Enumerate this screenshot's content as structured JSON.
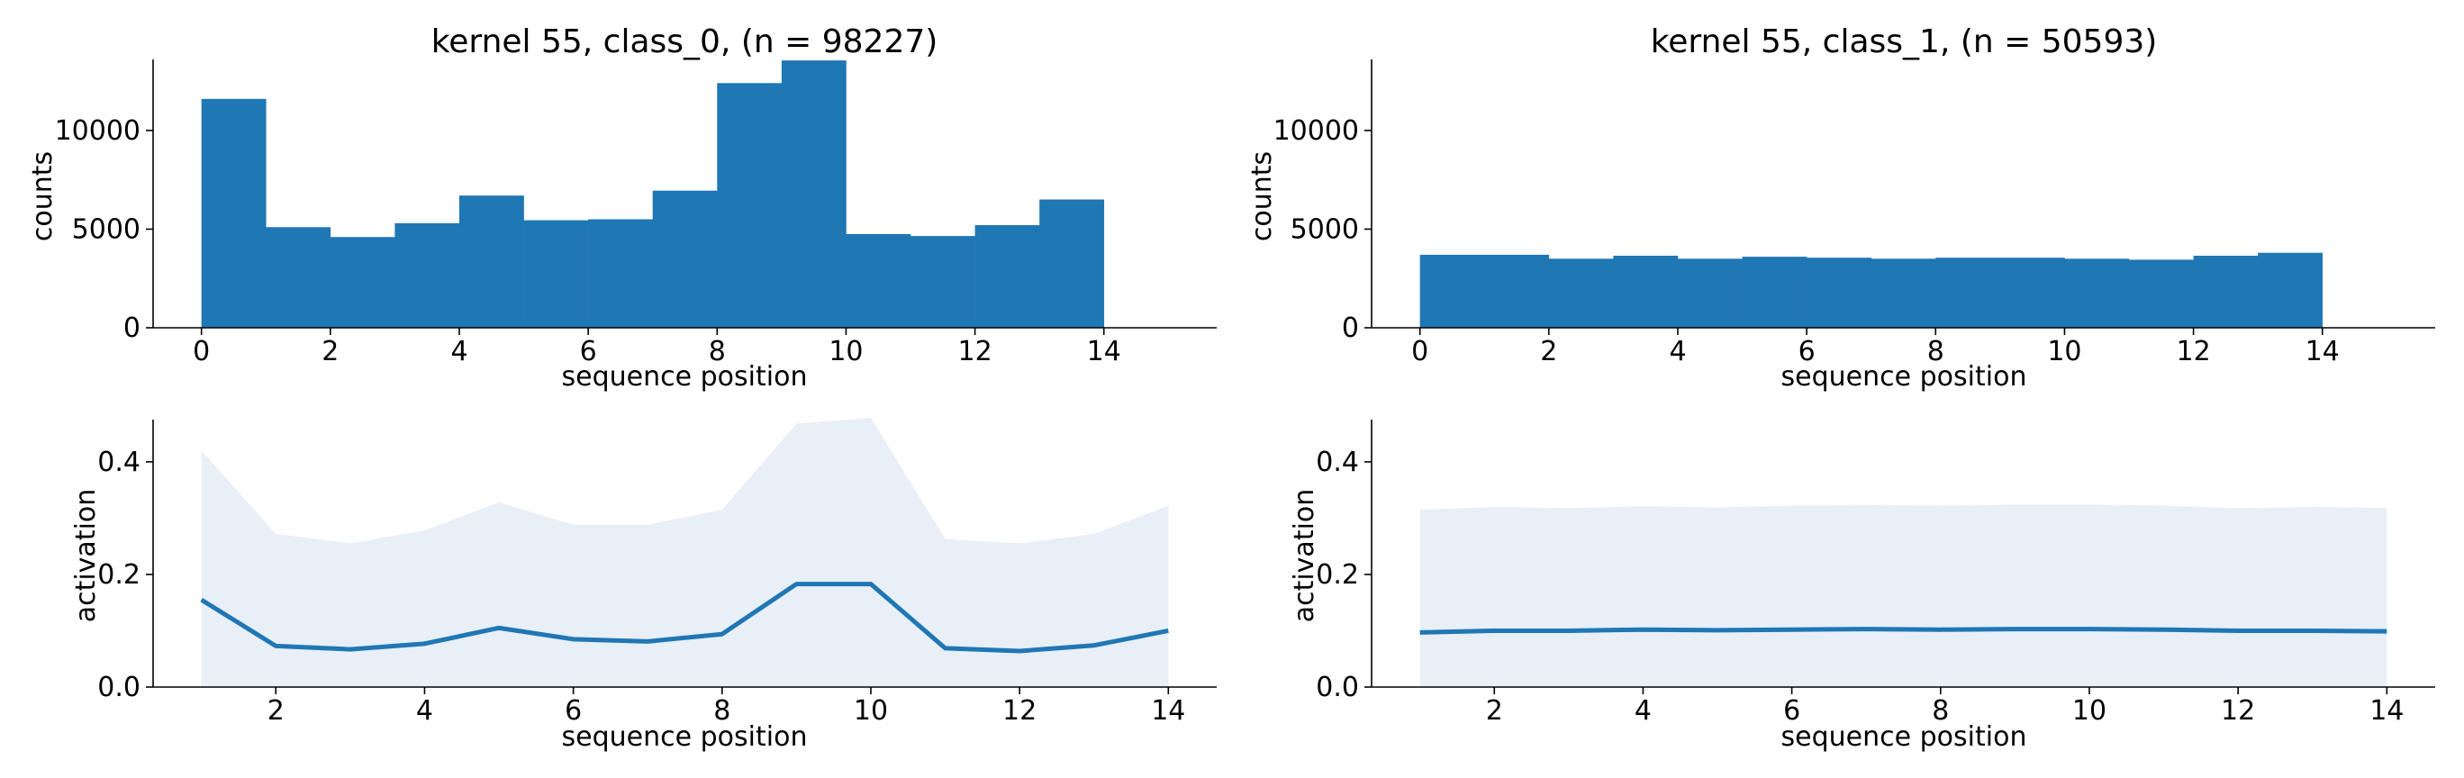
{
  "chart_data": [
    {
      "id": "hist0",
      "type": "bar",
      "title": "kernel 55, class_0, (n = 98227)",
      "xlabel": "sequence position",
      "ylabel": "counts",
      "xlim": [
        -0.75,
        15.75
      ],
      "ylim": [
        0,
        13600
      ],
      "xticks": [
        0,
        2,
        4,
        6,
        8,
        10,
        12,
        14
      ],
      "yticks": [
        0,
        5000,
        10000
      ],
      "bin_edges": [
        0,
        1,
        2,
        3,
        4,
        5,
        6,
        7,
        8,
        9,
        10,
        11,
        12,
        13,
        14
      ],
      "values": [
        11600,
        5100,
        4600,
        5300,
        6700,
        5450,
        5500,
        6950,
        12400,
        13550,
        4750,
        4650,
        5200,
        6500
      ],
      "color": "#1f77b4"
    },
    {
      "id": "hist1",
      "type": "bar",
      "title": "kernel 55, class_1, (n = 50593)",
      "xlabel": "sequence position",
      "ylabel": "counts",
      "xlim": [
        -0.75,
        15.75
      ],
      "ylim": [
        0,
        13600
      ],
      "xticks": [
        0,
        2,
        4,
        6,
        8,
        10,
        12,
        14
      ],
      "yticks": [
        0,
        5000,
        10000
      ],
      "bin_edges": [
        0,
        1,
        2,
        3,
        4,
        5,
        6,
        7,
        8,
        9,
        10,
        11,
        12,
        13,
        14
      ],
      "values": [
        3700,
        3700,
        3500,
        3650,
        3500,
        3600,
        3550,
        3500,
        3550,
        3550,
        3500,
        3450,
        3650,
        3800
      ],
      "color": "#1f77b4"
    },
    {
      "id": "line0",
      "type": "area",
      "title": "",
      "xlabel": "sequence position",
      "ylabel": "activation",
      "xlim": [
        0.35,
        14.65
      ],
      "ylim": [
        0,
        0.475
      ],
      "xticks": [
        2,
        4,
        6,
        8,
        10,
        12,
        14
      ],
      "yticks": [
        0.0,
        0.2,
        0.4
      ],
      "x": [
        1,
        2,
        3,
        4,
        5,
        6,
        7,
        8,
        9,
        10,
        11,
        12,
        13,
        14
      ],
      "mean": [
        0.155,
        0.073,
        0.067,
        0.077,
        0.105,
        0.085,
        0.081,
        0.094,
        0.183,
        0.183,
        0.069,
        0.064,
        0.074,
        0.1
      ],
      "upper": [
        0.42,
        0.272,
        0.255,
        0.278,
        0.328,
        0.288,
        0.288,
        0.315,
        0.468,
        0.478,
        0.263,
        0.255,
        0.272,
        0.322
      ],
      "lower": [
        0,
        0,
        0,
        0,
        0,
        0,
        0,
        0,
        0,
        0,
        0,
        0,
        0,
        0
      ],
      "color": "#1f77b4",
      "fill_color": "#e8eff7"
    },
    {
      "id": "line1",
      "type": "area",
      "title": "",
      "xlabel": "sequence position",
      "ylabel": "activation",
      "xlim": [
        0.35,
        14.65
      ],
      "ylim": [
        0,
        0.475
      ],
      "xticks": [
        2,
        4,
        6,
        8,
        10,
        12,
        14
      ],
      "yticks": [
        0.0,
        0.2,
        0.4
      ],
      "x": [
        1,
        2,
        3,
        4,
        5,
        6,
        7,
        8,
        9,
        10,
        11,
        12,
        13,
        14
      ],
      "mean": [
        0.097,
        0.1,
        0.1,
        0.102,
        0.101,
        0.102,
        0.103,
        0.102,
        0.103,
        0.103,
        0.102,
        0.1,
        0.1,
        0.099
      ],
      "upper": [
        0.315,
        0.32,
        0.318,
        0.321,
        0.319,
        0.322,
        0.323,
        0.322,
        0.324,
        0.324,
        0.322,
        0.318,
        0.32,
        0.318
      ],
      "lower": [
        0,
        0,
        0,
        0,
        0,
        0,
        0,
        0,
        0,
        0,
        0,
        0,
        0,
        0
      ],
      "color": "#1f77b4",
      "fill_color": "#e8eff7"
    }
  ]
}
